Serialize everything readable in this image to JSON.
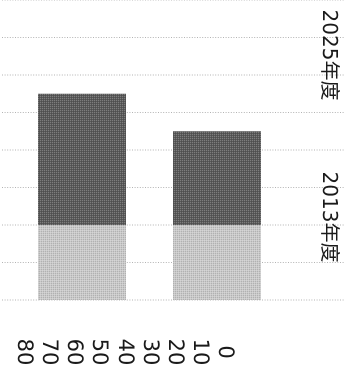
{
  "chart_data": {
    "type": "bar",
    "orientation": "horizontal-stacked",
    "rotation": "rotated 90 degrees clockwise",
    "categories": [
      "2013年度",
      "2025年度"
    ],
    "series": [
      {
        "values": [
          20,
          20
        ],
        "color": "#c9c9c9"
      },
      {
        "values": [
          25,
          35
        ],
        "color": "#595959"
      }
    ],
    "value_axis": {
      "ticks": [
        "0",
        "10",
        "20",
        "30",
        "40",
        "50",
        "60",
        "70",
        "80"
      ],
      "range": [
        0,
        80
      ]
    },
    "grid": true,
    "gridline_color": "#b3b3b3",
    "text_color": "#1a1a1a"
  }
}
